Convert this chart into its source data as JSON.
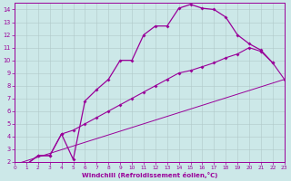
{
  "xlabel": "Windchill (Refroidissement éolien,°C)",
  "background_color": "#cce8e8",
  "grid_color": "#b0c8c8",
  "line_color": "#990099",
  "xlim": [
    0,
    23
  ],
  "ylim": [
    2,
    14.5
  ],
  "ytick_min": 2,
  "ytick_max": 14,
  "xticks": [
    0,
    1,
    2,
    3,
    4,
    5,
    6,
    7,
    8,
    9,
    10,
    11,
    12,
    13,
    14,
    15,
    16,
    17,
    18,
    19,
    20,
    21,
    22,
    23
  ],
  "yticks": [
    2,
    3,
    4,
    5,
    6,
    7,
    8,
    9,
    10,
    11,
    12,
    13,
    14
  ],
  "curve1_x": [
    0,
    1,
    2,
    3,
    4,
    5,
    6,
    7,
    8,
    9,
    10,
    11,
    12,
    13,
    14,
    15,
    16,
    17,
    18,
    19,
    20,
    21,
    22
  ],
  "curve1_y": [
    1.8,
    1.8,
    2.5,
    2.5,
    4.2,
    2.2,
    6.8,
    7.7,
    8.5,
    10.0,
    10.0,
    12.0,
    12.7,
    12.7,
    14.1,
    14.4,
    14.1,
    14.0,
    13.4,
    12.0,
    11.3,
    10.8,
    9.8
  ],
  "curve2_x": [
    0,
    1,
    2,
    3,
    4,
    5,
    6,
    7,
    8,
    9,
    10,
    11,
    12,
    13,
    14,
    15,
    16,
    17,
    18,
    19,
    20,
    21,
    22,
    23
  ],
  "curve2_y": [
    1.8,
    1.8,
    2.5,
    2.5,
    4.2,
    4.5,
    5.0,
    5.5,
    6.0,
    6.5,
    7.0,
    7.5,
    8.0,
    8.5,
    9.0,
    9.2,
    9.5,
    9.8,
    10.2,
    10.5,
    11.0,
    10.7,
    9.8,
    8.5
  ],
  "line3_x": [
    0,
    23
  ],
  "line3_y": [
    1.8,
    8.5
  ]
}
